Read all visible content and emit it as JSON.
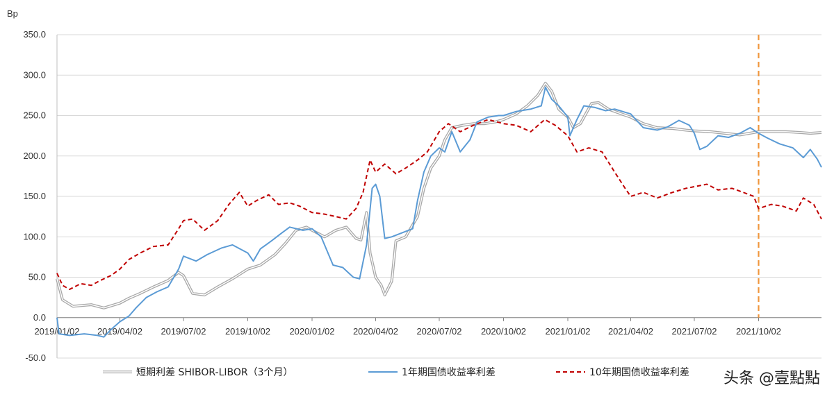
{
  "chart_data": {
    "type": "line",
    "unit_label": "Bp",
    "ylim": [
      -50,
      350
    ],
    "y_ticks": [
      "350.0",
      "300.0",
      "250.0",
      "200.0",
      "150.0",
      "100.0",
      "50.0",
      "0.0",
      "-50.0"
    ],
    "x_ticks": [
      "2019/01/02",
      "2019/04/02",
      "2019/07/02",
      "2019/10/02",
      "2020/01/02",
      "2020/04/02",
      "2020/07/02",
      "2020/10/02",
      "2021/01/02",
      "2021/04/02",
      "2021/07/02",
      "2021/10/02"
    ],
    "grid": "horizontal",
    "legend_position": "bottom",
    "vertical_marker": {
      "x": "2021/10/02",
      "color": "#F0963C"
    },
    "series": [
      {
        "name": "短期利差 SHIBOR-LIBOR（3个月）",
        "color": "#A8A8A8",
        "style": "double",
        "points": [
          [
            "2019/01/02",
            48
          ],
          [
            "2019/01/10",
            22
          ],
          [
            "2019/01/25",
            14
          ],
          [
            "2019/02/20",
            16
          ],
          [
            "2019/03/10",
            12
          ],
          [
            "2019/04/02",
            18
          ],
          [
            "2019/04/15",
            24
          ],
          [
            "2019/05/01",
            30
          ],
          [
            "2019/05/20",
            38
          ],
          [
            "2019/06/10",
            46
          ],
          [
            "2019/06/25",
            56
          ],
          [
            "2019/07/02",
            52
          ],
          [
            "2019/07/15",
            30
          ],
          [
            "2019/08/01",
            28
          ],
          [
            "2019/08/20",
            38
          ],
          [
            "2019/09/10",
            48
          ],
          [
            "2019/10/02",
            60
          ],
          [
            "2019/10/20",
            65
          ],
          [
            "2019/11/10",
            78
          ],
          [
            "2019/11/25",
            92
          ],
          [
            "2019/12/10",
            108
          ],
          [
            "2019/12/25",
            112
          ],
          [
            "2020/01/02",
            108
          ],
          [
            "2020/01/20",
            100
          ],
          [
            "2020/02/05",
            108
          ],
          [
            "2020/02/20",
            112
          ],
          [
            "2020/03/05",
            98
          ],
          [
            "2020/03/12",
            96
          ],
          [
            "2020/03/20",
            130
          ],
          [
            "2020/03/25",
            80
          ],
          [
            "2020/04/02",
            50
          ],
          [
            "2020/04/10",
            40
          ],
          [
            "2020/04/15",
            28
          ],
          [
            "2020/04/25",
            45
          ],
          [
            "2020/05/01",
            95
          ],
          [
            "2020/05/15",
            100
          ],
          [
            "2020/06/01",
            125
          ],
          [
            "2020/06/10",
            160
          ],
          [
            "2020/06/20",
            185
          ],
          [
            "2020/07/02",
            200
          ],
          [
            "2020/07/10",
            220
          ],
          [
            "2020/07/20",
            235
          ],
          [
            "2020/08/05",
            238
          ],
          [
            "2020/08/20",
            240
          ],
          [
            "2020/09/05",
            240
          ],
          [
            "2020/09/20",
            242
          ],
          [
            "2020/10/02",
            245
          ],
          [
            "2020/10/20",
            252
          ],
          [
            "2020/11/05",
            262
          ],
          [
            "2020/11/20",
            275
          ],
          [
            "2020/12/01",
            290
          ],
          [
            "2020/12/10",
            280
          ],
          [
            "2020/12/20",
            258
          ],
          [
            "2021/01/02",
            248
          ],
          [
            "2021/01/10",
            235
          ],
          [
            "2021/01/20",
            240
          ],
          [
            "2021/02/05",
            265
          ],
          [
            "2021/02/15",
            266
          ],
          [
            "2021/03/01",
            258
          ],
          [
            "2021/03/20",
            252
          ],
          [
            "2021/04/02",
            248
          ],
          [
            "2021/04/20",
            240
          ],
          [
            "2021/05/10",
            235
          ],
          [
            "2021/06/01",
            234
          ],
          [
            "2021/06/20",
            232
          ],
          [
            "2021/07/02",
            231
          ],
          [
            "2021/07/25",
            230
          ],
          [
            "2021/08/15",
            228
          ],
          [
            "2021/09/05",
            226
          ],
          [
            "2021/09/25",
            229
          ],
          [
            "2021/10/02",
            230
          ],
          [
            "2021/10/20",
            230
          ],
          [
            "2021/11/10",
            230
          ],
          [
            "2021/12/01",
            229
          ],
          [
            "2021/12/15",
            228
          ],
          [
            "2021/12/31",
            229
          ]
        ]
      },
      {
        "name": "1年期国债收益率利差",
        "color": "#5B9BD5",
        "style": "solid",
        "points": [
          [
            "2019/01/02",
            0
          ],
          [
            "2019/01/05",
            -20
          ],
          [
            "2019/01/20",
            -22
          ],
          [
            "2019/02/10",
            -20
          ],
          [
            "2019/03/01",
            -22
          ],
          [
            "2019/03/10",
            -24
          ],
          [
            "2019/03/20",
            -15
          ],
          [
            "2019/04/02",
            -5
          ],
          [
            "2019/04/15",
            2
          ],
          [
            "2019/04/25",
            12
          ],
          [
            "2019/05/10",
            25
          ],
          [
            "2019/05/25",
            32
          ],
          [
            "2019/06/10",
            38
          ],
          [
            "2019/06/25",
            60
          ],
          [
            "2019/07/02",
            76
          ],
          [
            "2019/07/20",
            70
          ],
          [
            "2019/08/05",
            78
          ],
          [
            "2019/08/25",
            86
          ],
          [
            "2019/09/10",
            90
          ],
          [
            "2019/10/02",
            80
          ],
          [
            "2019/10/10",
            70
          ],
          [
            "2019/10/20",
            85
          ],
          [
            "2019/11/05",
            95
          ],
          [
            "2019/11/20",
            105
          ],
          [
            "2019/12/01",
            112
          ],
          [
            "2019/12/20",
            108
          ],
          [
            "2020/01/02",
            110
          ],
          [
            "2020/01/15",
            100
          ],
          [
            "2020/02/01",
            65
          ],
          [
            "2020/02/15",
            62
          ],
          [
            "2020/03/01",
            50
          ],
          [
            "2020/03/10",
            48
          ],
          [
            "2020/03/20",
            90
          ],
          [
            "2020/03/28",
            160
          ],
          [
            "2020/04/02",
            165
          ],
          [
            "2020/04/08",
            150
          ],
          [
            "2020/04/15",
            98
          ],
          [
            "2020/04/25",
            100
          ],
          [
            "2020/05/10",
            105
          ],
          [
            "2020/05/25",
            110
          ],
          [
            "2020/06/01",
            145
          ],
          [
            "2020/06/10",
            180
          ],
          [
            "2020/06/20",
            200
          ],
          [
            "2020/07/02",
            210
          ],
          [
            "2020/07/10",
            205
          ],
          [
            "2020/07/20",
            230
          ],
          [
            "2020/08/01",
            205
          ],
          [
            "2020/08/15",
            220
          ],
          [
            "2020/08/25",
            242
          ],
          [
            "2020/09/10",
            248
          ],
          [
            "2020/09/25",
            250
          ],
          [
            "2020/10/02",
            250
          ],
          [
            "2020/10/20",
            255
          ],
          [
            "2020/11/10",
            258
          ],
          [
            "2020/11/25",
            262
          ],
          [
            "2020/12/01",
            285
          ],
          [
            "2020/12/10",
            270
          ],
          [
            "2020/12/20",
            262
          ],
          [
            "2021/01/02",
            248
          ],
          [
            "2021/01/05",
            225
          ],
          [
            "2021/01/15",
            245
          ],
          [
            "2021/01/25",
            262
          ],
          [
            "2021/02/10",
            260
          ],
          [
            "2021/02/25",
            256
          ],
          [
            "2021/03/10",
            258
          ],
          [
            "2021/03/25",
            254
          ],
          [
            "2021/04/02",
            252
          ],
          [
            "2021/04/20",
            235
          ],
          [
            "2021/05/10",
            232
          ],
          [
            "2021/05/25",
            236
          ],
          [
            "2021/06/10",
            244
          ],
          [
            "2021/06/25",
            238
          ],
          [
            "2021/07/02",
            228
          ],
          [
            "2021/07/10",
            208
          ],
          [
            "2021/07/20",
            212
          ],
          [
            "2021/08/05",
            225
          ],
          [
            "2021/08/20",
            223
          ],
          [
            "2021/09/05",
            228
          ],
          [
            "2021/09/20",
            235
          ],
          [
            "2021/10/02",
            228
          ],
          [
            "2021/10/15",
            222
          ],
          [
            "2021/11/01",
            215
          ],
          [
            "2021/11/20",
            210
          ],
          [
            "2021/12/05",
            198
          ],
          [
            "2021/12/15",
            208
          ],
          [
            "2021/12/25",
            196
          ],
          [
            "2021/12/31",
            186
          ]
        ]
      },
      {
        "name": "10年期国债收益率利差",
        "color": "#C00000",
        "style": "dashed",
        "points": [
          [
            "2019/01/02",
            55
          ],
          [
            "2019/01/10",
            40
          ],
          [
            "2019/01/20",
            35
          ],
          [
            "2019/02/05",
            42
          ],
          [
            "2019/02/20",
            40
          ],
          [
            "2019/03/05",
            46
          ],
          [
            "2019/03/20",
            52
          ],
          [
            "2019/04/02",
            60
          ],
          [
            "2019/04/15",
            72
          ],
          [
            "2019/05/01",
            80
          ],
          [
            "2019/05/20",
            88
          ],
          [
            "2019/06/10",
            90
          ],
          [
            "2019/06/25",
            110
          ],
          [
            "2019/07/02",
            120
          ],
          [
            "2019/07/15",
            122
          ],
          [
            "2019/08/01",
            108
          ],
          [
            "2019/08/20",
            120
          ],
          [
            "2019/09/05",
            140
          ],
          [
            "2019/09/20",
            155
          ],
          [
            "2019/10/02",
            138
          ],
          [
            "2019/10/15",
            145
          ],
          [
            "2019/11/01",
            152
          ],
          [
            "2019/11/15",
            140
          ],
          [
            "2019/12/01",
            142
          ],
          [
            "2019/12/15",
            138
          ],
          [
            "2020/01/02",
            130
          ],
          [
            "2020/01/20",
            128
          ],
          [
            "2020/02/05",
            125
          ],
          [
            "2020/02/20",
            122
          ],
          [
            "2020/03/05",
            135
          ],
          [
            "2020/03/15",
            155
          ],
          [
            "2020/03/25",
            195
          ],
          [
            "2020/04/02",
            180
          ],
          [
            "2020/04/15",
            190
          ],
          [
            "2020/05/01",
            178
          ],
          [
            "2020/05/15",
            185
          ],
          [
            "2020/06/01",
            195
          ],
          [
            "2020/06/15",
            205
          ],
          [
            "2020/07/02",
            230
          ],
          [
            "2020/07/15",
            240
          ],
          [
            "2020/08/01",
            230
          ],
          [
            "2020/08/20",
            238
          ],
          [
            "2020/09/10",
            245
          ],
          [
            "2020/10/02",
            240
          ],
          [
            "2020/10/20",
            238
          ],
          [
            "2020/11/10",
            230
          ],
          [
            "2020/11/30",
            245
          ],
          [
            "2020/12/15",
            238
          ],
          [
            "2021/01/02",
            225
          ],
          [
            "2021/01/15",
            205
          ],
          [
            "2021/02/01",
            210
          ],
          [
            "2021/02/20",
            205
          ],
          [
            "2021/03/10",
            180
          ],
          [
            "2021/03/25",
            160
          ],
          [
            "2021/04/02",
            150
          ],
          [
            "2021/04/20",
            155
          ],
          [
            "2021/05/10",
            148
          ],
          [
            "2021/06/01",
            155
          ],
          [
            "2021/06/20",
            160
          ],
          [
            "2021/07/02",
            162
          ],
          [
            "2021/07/20",
            165
          ],
          [
            "2021/08/05",
            158
          ],
          [
            "2021/08/25",
            160
          ],
          [
            "2021/09/10",
            155
          ],
          [
            "2021/09/25",
            150
          ],
          [
            "2021/10/02",
            135
          ],
          [
            "2021/10/20",
            140
          ],
          [
            "2021/11/05",
            138
          ],
          [
            "2021/11/25",
            132
          ],
          [
            "2021/12/05",
            148
          ],
          [
            "2021/12/20",
            140
          ],
          [
            "2021/12/31",
            122
          ]
        ]
      }
    ]
  },
  "watermark": {
    "text": "头条 @壹點點"
  }
}
